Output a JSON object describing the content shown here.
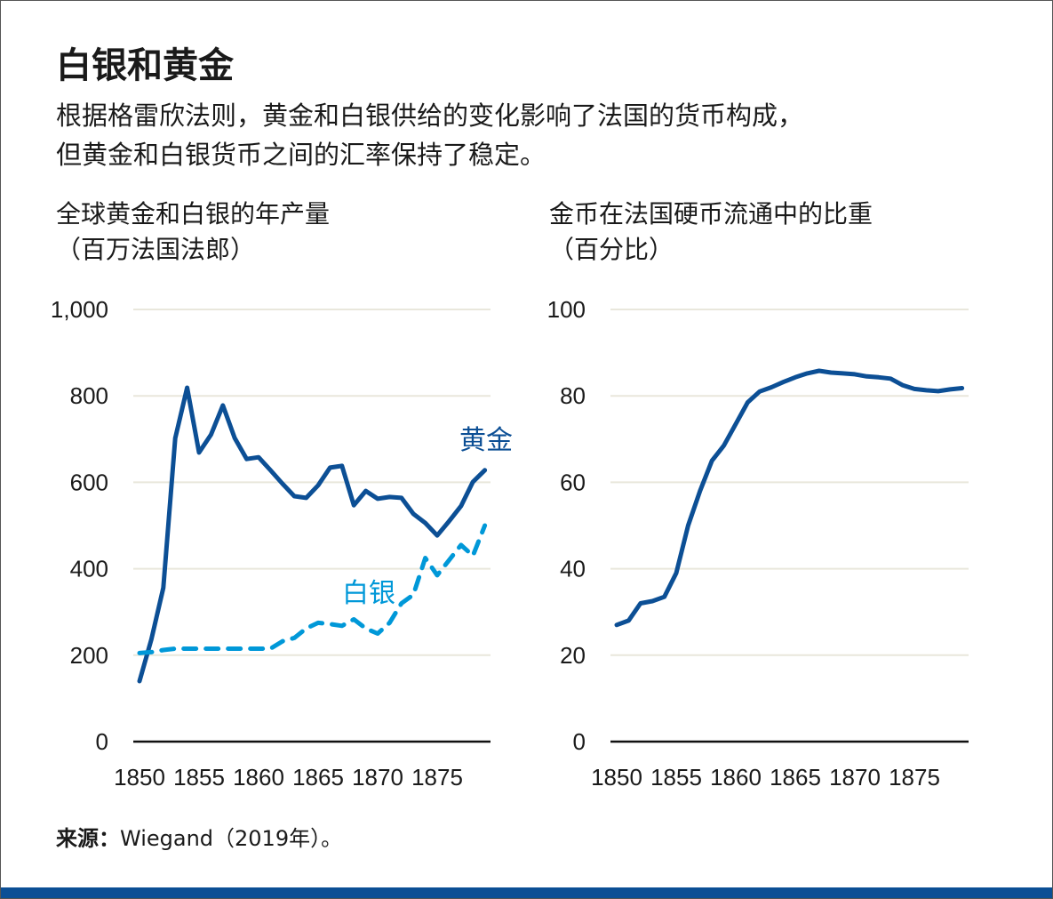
{
  "title": "白银和黄金",
  "subtitle": [
    "根据格雷欣法则，黄金和白银供给的变化影响了法国的货币构成，",
    "但黄金和白银货币之间的汇率保持了稳定。"
  ],
  "source_label": "来源：",
  "source_text": "Wiegand（2019年）。",
  "colors": {
    "gold": "#0c4f95",
    "silver": "#0098d8",
    "grid": "#e9e7dc",
    "bar": "#0c4f95"
  },
  "chart_data": [
    {
      "type": "line",
      "title": [
        "全球黄金和白银的年产量",
        "（百万法国法郎）"
      ],
      "x": [
        1850,
        1851,
        1852,
        1853,
        1854,
        1855,
        1856,
        1857,
        1858,
        1859,
        1860,
        1861,
        1862,
        1863,
        1864,
        1865,
        1866,
        1867,
        1868,
        1869,
        1870,
        1871,
        1872,
        1873,
        1874,
        1875,
        1876,
        1877,
        1878,
        1879
      ],
      "xticks": [
        "1850",
        "1855",
        "1860",
        "1865",
        "1870",
        "1875"
      ],
      "yticks": [
        "0",
        "200",
        "400",
        "600",
        "800",
        "1,000"
      ],
      "ylim": [
        0,
        1000
      ],
      "grid": true,
      "series": [
        {
          "name": "黄金",
          "style": "solid",
          "values": [
            140,
            237,
            356,
            702,
            819,
            669,
            710,
            778,
            702,
            654,
            658,
            628,
            597,
            568,
            564,
            593,
            634,
            638,
            547,
            580,
            562,
            566,
            564,
            527,
            506,
            477,
            510,
            545,
            601,
            628
          ]
        },
        {
          "name": "白银",
          "style": "dashed",
          "values": [
            205,
            207,
            212,
            215,
            215,
            215,
            215,
            215,
            215,
            215,
            215,
            215,
            232,
            240,
            262,
            275,
            272,
            268,
            283,
            262,
            250,
            275,
            320,
            340,
            425,
            385,
            420,
            455,
            430,
            500
          ]
        }
      ]
    },
    {
      "type": "line",
      "title": [
        "金币在法国硬币流通中的比重",
        "（百分比）"
      ],
      "x": [
        1850,
        1851,
        1852,
        1853,
        1854,
        1855,
        1856,
        1857,
        1858,
        1859,
        1860,
        1861,
        1862,
        1863,
        1864,
        1865,
        1866,
        1867,
        1868,
        1869,
        1870,
        1871,
        1872,
        1873,
        1874,
        1875,
        1876,
        1877,
        1878,
        1879
      ],
      "xticks": [
        "1850",
        "1855",
        "1860",
        "1865",
        "1870",
        "1875"
      ],
      "yticks": [
        "0",
        "20",
        "40",
        "60",
        "80",
        "100"
      ],
      "ylim": [
        0,
        100
      ],
      "grid": true,
      "series": [
        {
          "style": "solid",
          "values": [
            27,
            28,
            32,
            32.5,
            33.5,
            39,
            50,
            58,
            65,
            68.5,
            73.5,
            78.5,
            81,
            82,
            83.2,
            84.3,
            85.2,
            85.8,
            85.4,
            85.2,
            85,
            84.5,
            84.3,
            84,
            82.5,
            81.6,
            81.3,
            81.1,
            81.5,
            81.8
          ]
        }
      ]
    }
  ]
}
